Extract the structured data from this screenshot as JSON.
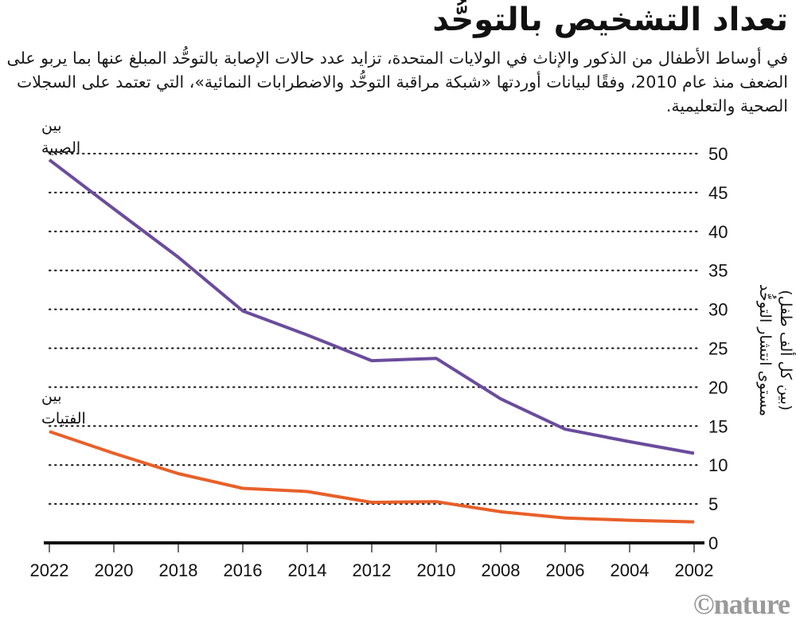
{
  "chart_data": {
    "type": "line",
    "title": "تعداد التشخيص بالتوحُّد",
    "subtitle": "في أوساط الأطفال من الذكور والإناث في الولايات المتحدة، تزايد عدد حالات الإصابة بالتوحُّد المبلغ عنها بما يربو على الضعف منذ عام 2010، وفقًا لبيانات أوردتها «شبكة مراقبة التوحُّد والاضطرابات النمائية»، التي تعتمد على السجلات الصحية والتعليمية.",
    "x": [
      2022,
      2020,
      2018,
      2016,
      2014,
      2012,
      2010,
      2008,
      2006,
      2004,
      2002
    ],
    "x_tick_labels": [
      "2022",
      "2020",
      "2018",
      "2016",
      "2014",
      "2012",
      "2010",
      "2008",
      "2006",
      "2004",
      "2002"
    ],
    "x_direction": "reversed",
    "ylabel": "مستوى انتشار التوحُّد",
    "ylabel_sub": "(بين كل ألف طفل)",
    "ylim": [
      0,
      50
    ],
    "y_ticks": [
      0,
      5,
      10,
      15,
      20,
      25,
      30,
      35,
      40,
      45,
      50
    ],
    "y_axis_side": "right",
    "grid": "horizontal-dotted",
    "series": [
      {
        "name": "بين الصبية",
        "label_line1": "بين",
        "label_line2": "الصبية",
        "color": "#6a4c9c",
        "values": [
          49.2,
          42.9,
          36.7,
          29.8,
          26.7,
          23.4,
          23.7,
          18.5,
          14.6,
          13.0,
          11.5
        ]
      },
      {
        "name": "بين الفتيات",
        "label_line1": "بين",
        "label_line2": "الفتيات",
        "color": "#e8602a",
        "values": [
          14.3,
          11.5,
          8.9,
          7.0,
          6.6,
          5.2,
          5.3,
          4.0,
          3.2,
          2.9,
          2.7
        ]
      }
    ]
  },
  "credit": "©nature"
}
